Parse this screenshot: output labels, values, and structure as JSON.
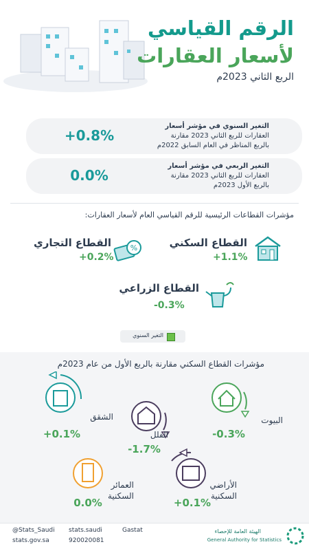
{
  "header": {
    "title_line1": "الرقم القياسي",
    "title_line2": "لأسعار العقارات",
    "subtitle": "الربع الثاني 2023م"
  },
  "summary": [
    {
      "lines": [
        "التغير السنوي في مؤشر أسعار",
        "العقارات للربع الثاني 2023 مقارنة",
        "بالربع المناظر في العام السابق 2022م"
      ],
      "value": "+0.8%"
    },
    {
      "lines": [
        "التغير الربعي في مؤشر أسعار",
        "العقارات للربع الثاني 2023 مقارنة",
        "بالربع الأول 2023م"
      ],
      "value": "0.0%"
    }
  ],
  "sectors": {
    "heading": "مؤشرات القطاعات الرئيسية للرقم القياسي العام لأسعار العقارات:",
    "items": [
      {
        "label": "القطاع السكني",
        "value": "+1.1%"
      },
      {
        "label": "القطاع التجاري",
        "value": "+0.2%"
      },
      {
        "label": "القطاع الزراعي",
        "value": "-0.3%"
      }
    ],
    "legend": "التغير السنوي"
  },
  "residential": {
    "heading": "مؤشرات القطاع السكني مقارنة بالربع الأول من عام 2023م",
    "items": [
      {
        "label": "البيوت",
        "value": "-0.3%"
      },
      {
        "label": "الفلل",
        "value": "-1.7%"
      },
      {
        "label": "الشقق",
        "value": "+0.1%"
      },
      {
        "label": "الأراضي السكنية",
        "value": "+0.1%"
      },
      {
        "label": "العمائر السكنية",
        "value": "0.0%"
      }
    ]
  },
  "footer": {
    "twitter": "@Stats_Saudi",
    "facebook": "stats.saudi",
    "linkedin": "Gastat",
    "website": "stats.gov.sa",
    "phone": "920020081",
    "org_ar": "الهيئة العامة للإحصاء",
    "org_en": "General Authority for Statistics"
  }
}
